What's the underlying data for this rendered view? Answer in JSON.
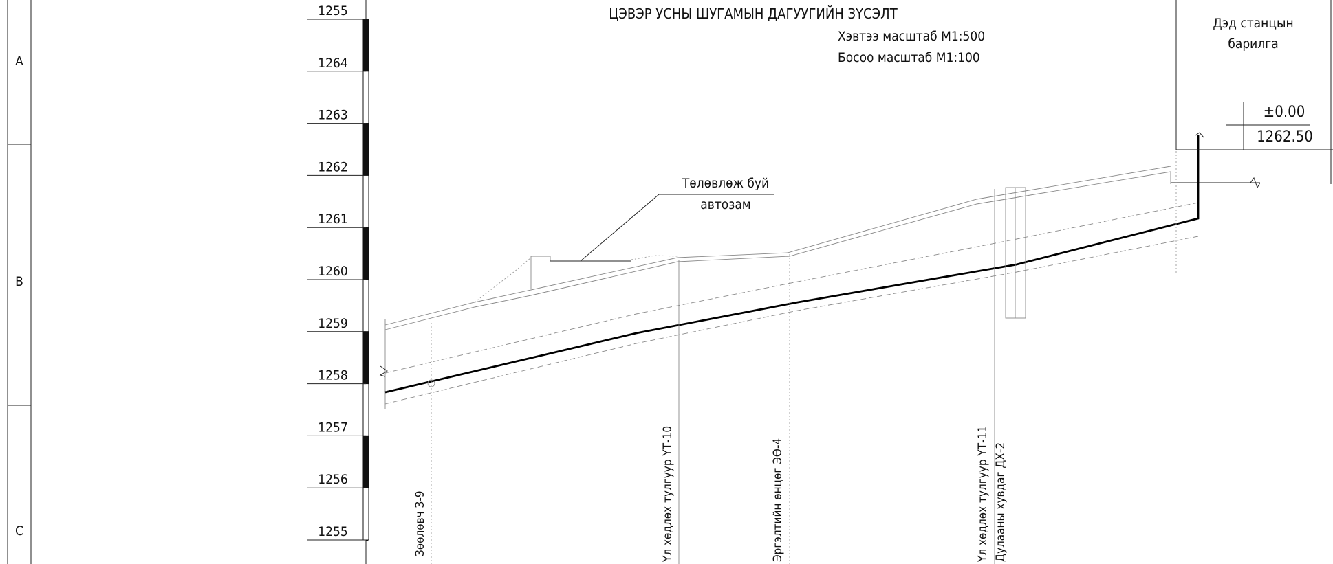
{
  "title": "ЦЭВЭР УСНЫ ШУГАМЫН ДАГУУГИЙН ЗҮСЭЛТ",
  "scale_horizontal": "Хэвтээ масштаб М1:500",
  "scale_vertical": "Босоо масштаб М1:100",
  "row_labels": [
    "A",
    "B",
    "C"
  ],
  "elevation_ticks": [
    "1255",
    "1264",
    "1263",
    "1262",
    "1261",
    "1260",
    "1259",
    "1258",
    "1257",
    "1256",
    "1255"
  ],
  "road_callout": {
    "line1": "Төлөвлөж буй",
    "line2": "автозам"
  },
  "station": {
    "line1": "Дэд станцын",
    "line2": "барилга",
    "level_relative": "±0.00",
    "level_absolute": "1262.50"
  },
  "vertical_labels": {
    "valve": "Зөөлөвч З-9",
    "support_10": "Үл хөдлөх тулгуур ҮТ-10",
    "bend": "Эргэлтийн өнцөг ЭӨ-4",
    "support_11": "Үл хөдлөх тулгуур ҮТ-11",
    "heat_channel": "Дулааны хувдаг ДХ-2"
  },
  "colors": {
    "ink": "#111111",
    "pipe": "#000000",
    "guide": "#999999"
  }
}
